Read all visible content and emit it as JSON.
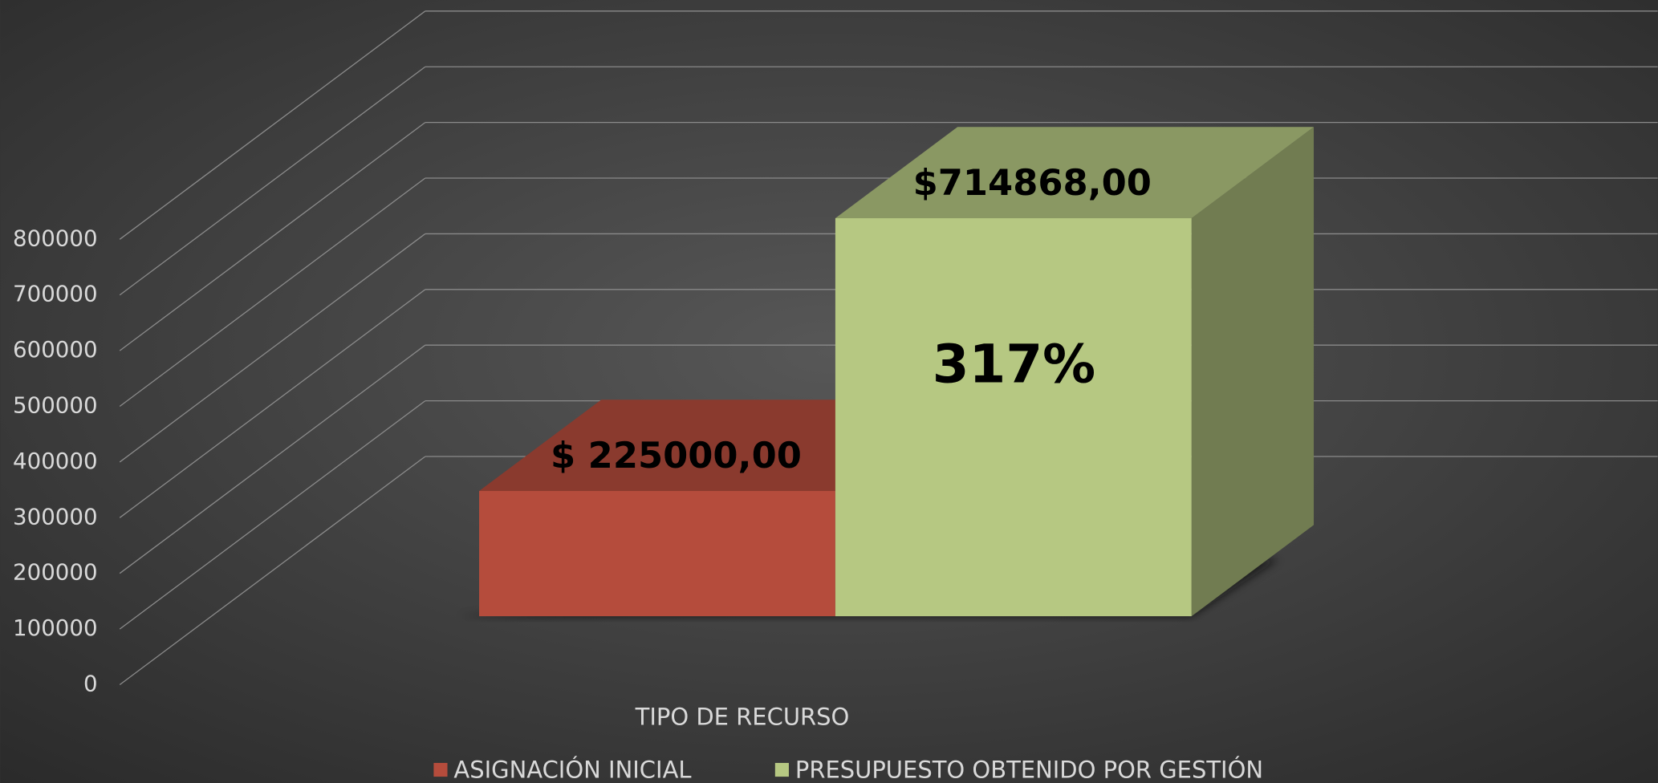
{
  "chart_data": {
    "type": "bar3d",
    "x_label": "TIPO DE RECURSO",
    "series": [
      {
        "name": "ASIGNACIÓN INICIAL",
        "color": "#b54c3c",
        "values": [
          225000
        ],
        "value_labels": [
          "$ 225000,00"
        ]
      },
      {
        "name": "PRESUPUESTO OBTENIDO POR GESTIÓN",
        "color": "#b6c882",
        "values": [
          714868
        ],
        "value_labels": [
          "$714868,00"
        ]
      }
    ],
    "annotation": "317%",
    "ylim": [
      0,
      800000
    ],
    "yticks": [
      0,
      100000,
      200000,
      300000,
      400000,
      500000,
      600000,
      700000,
      800000
    ],
    "grid": true,
    "legend": "bottom"
  }
}
